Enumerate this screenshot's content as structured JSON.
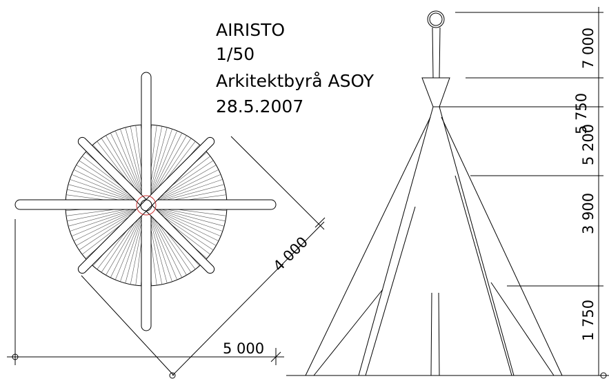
{
  "title_block": {
    "lines": [
      "AIRISTO",
      "1/50",
      "Arkitektbyrå ASOY",
      "28.5.2007"
    ]
  },
  "dimensions": {
    "elevation": [
      "7 000",
      "5 750",
      "5 200",
      "3 900",
      "1 750"
    ],
    "plan": {
      "diagonal": "4 000",
      "width": "5 000"
    }
  }
}
